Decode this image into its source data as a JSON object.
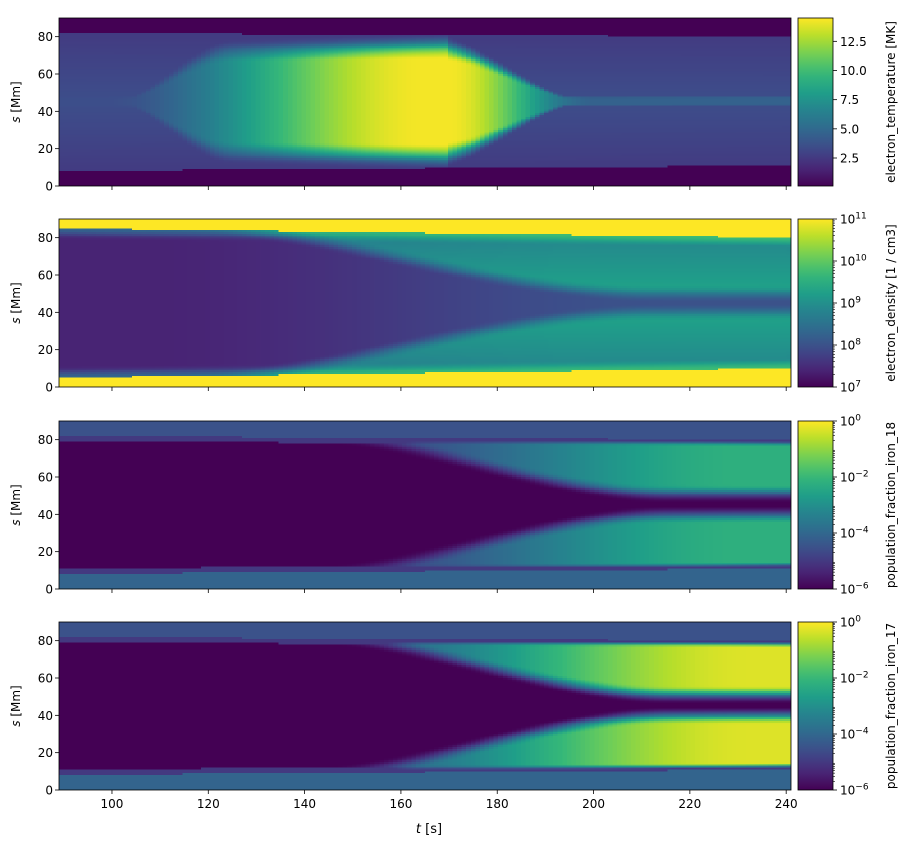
{
  "figure": {
    "x_label_var": "t",
    "x_label_unit": "[s]"
  },
  "chart_data": [
    {
      "type": "heatmap",
      "ylabel_var": "s",
      "ylabel_unit": "[Mm]",
      "xlim": [
        89,
        241
      ],
      "ylim": [
        0,
        90
      ],
      "x_ticks": [
        "100",
        "120",
        "140",
        "160",
        "180",
        "200",
        "220",
        "240"
      ],
      "y_ticks": [
        "0",
        "20",
        "40",
        "60",
        "80"
      ],
      "show_x_tick_labels": false,
      "colormap": "viridis",
      "colorbar": {
        "label": "electron_temperature [MK]",
        "scale": "linear",
        "range": [
          0.1,
          14.5
        ],
        "ticks": [
          "2.5",
          "5.0",
          "7.5",
          "10.0",
          "12.5"
        ],
        "tick_values": [
          2.5,
          5.0,
          7.5,
          10.0,
          12.5
        ]
      },
      "field": {
        "kind": "temperature",
        "chromosphere_top": [
          [
            89,
            8
          ],
          [
            241,
            11
          ]
        ],
        "corona_top": [
          [
            89,
            82
          ],
          [
            241,
            80
          ]
        ],
        "hot_core_peak_time": 170,
        "hot_core_peak_value_MK": 14.3,
        "hot_core_end_time": 200,
        "background_value_MK": 3.5
      }
    },
    {
      "type": "heatmap",
      "ylabel_var": "s",
      "ylabel_unit": "[Mm]",
      "xlim": [
        89,
        241
      ],
      "ylim": [
        0,
        90
      ],
      "x_ticks": [
        "100",
        "120",
        "140",
        "160",
        "180",
        "200",
        "220",
        "240"
      ],
      "y_ticks": [
        "0",
        "20",
        "40",
        "60",
        "80"
      ],
      "show_x_tick_labels": false,
      "colormap": "viridis",
      "colorbar": {
        "label": "electron_density [1 / cm3]",
        "scale": "log",
        "range_exponent": [
          7,
          11
        ],
        "tick_base": "10",
        "tick_exponents": [
          "7",
          "8",
          "9",
          "10",
          "11"
        ]
      },
      "field": {
        "kind": "density",
        "chromosphere_top": [
          [
            89,
            5
          ],
          [
            241,
            10
          ]
        ],
        "corona_top": [
          [
            89,
            85
          ],
          [
            241,
            80
          ]
        ],
        "log_value_boundary": 11,
        "log_value_interior": 7.4,
        "log_value_crossing": 8.7,
        "crossing_time": 212
      }
    },
    {
      "type": "heatmap",
      "ylabel_var": "s",
      "ylabel_unit": "[Mm]",
      "xlim": [
        89,
        241
      ],
      "ylim": [
        0,
        90
      ],
      "x_ticks": [
        "100",
        "120",
        "140",
        "160",
        "180",
        "200",
        "220",
        "240"
      ],
      "y_ticks": [
        "0",
        "20",
        "40",
        "60",
        "80"
      ],
      "show_x_tick_labels": false,
      "colormap": "viridis",
      "colorbar": {
        "label": "population_fraction_iron_18",
        "scale": "log",
        "range_exponent": [
          -6,
          0
        ],
        "tick_base": "10",
        "tick_exponents": [
          "−6",
          "−4",
          "−2",
          "0"
        ]
      },
      "field": {
        "kind": "ion_fraction",
        "chromosphere_top": [
          [
            89,
            8
          ],
          [
            241,
            11
          ]
        ],
        "corona_top": [
          [
            89,
            82
          ],
          [
            241,
            80
          ]
        ],
        "log_value_low": -6,
        "log_value_band": -4.5,
        "log_value_high": -2.2,
        "branch_time": 215
      }
    },
    {
      "type": "heatmap",
      "ylabel_var": "s",
      "ylabel_unit": "[Mm]",
      "xlabel_var": "t",
      "xlabel_unit": "[s]",
      "xlim": [
        89,
        241
      ],
      "ylim": [
        0,
        90
      ],
      "x_ticks": [
        "100",
        "120",
        "140",
        "160",
        "180",
        "200",
        "220",
        "240"
      ],
      "y_ticks": [
        "0",
        "20",
        "40",
        "60",
        "80"
      ],
      "show_x_tick_labels": true,
      "colormap": "viridis",
      "colorbar": {
        "label": "population_fraction_iron_17",
        "scale": "log",
        "range_exponent": [
          -6,
          0
        ],
        "tick_base": "10",
        "tick_exponents": [
          "−6",
          "−4",
          "−2",
          "0"
        ]
      },
      "field": {
        "kind": "ion_fraction",
        "chromosphere_top": [
          [
            89,
            8
          ],
          [
            241,
            11
          ]
        ],
        "corona_top": [
          [
            89,
            82
          ],
          [
            241,
            80
          ]
        ],
        "log_value_low": -6,
        "log_value_band": -4.5,
        "log_value_high": -0.3,
        "branch_time": 215
      }
    }
  ]
}
